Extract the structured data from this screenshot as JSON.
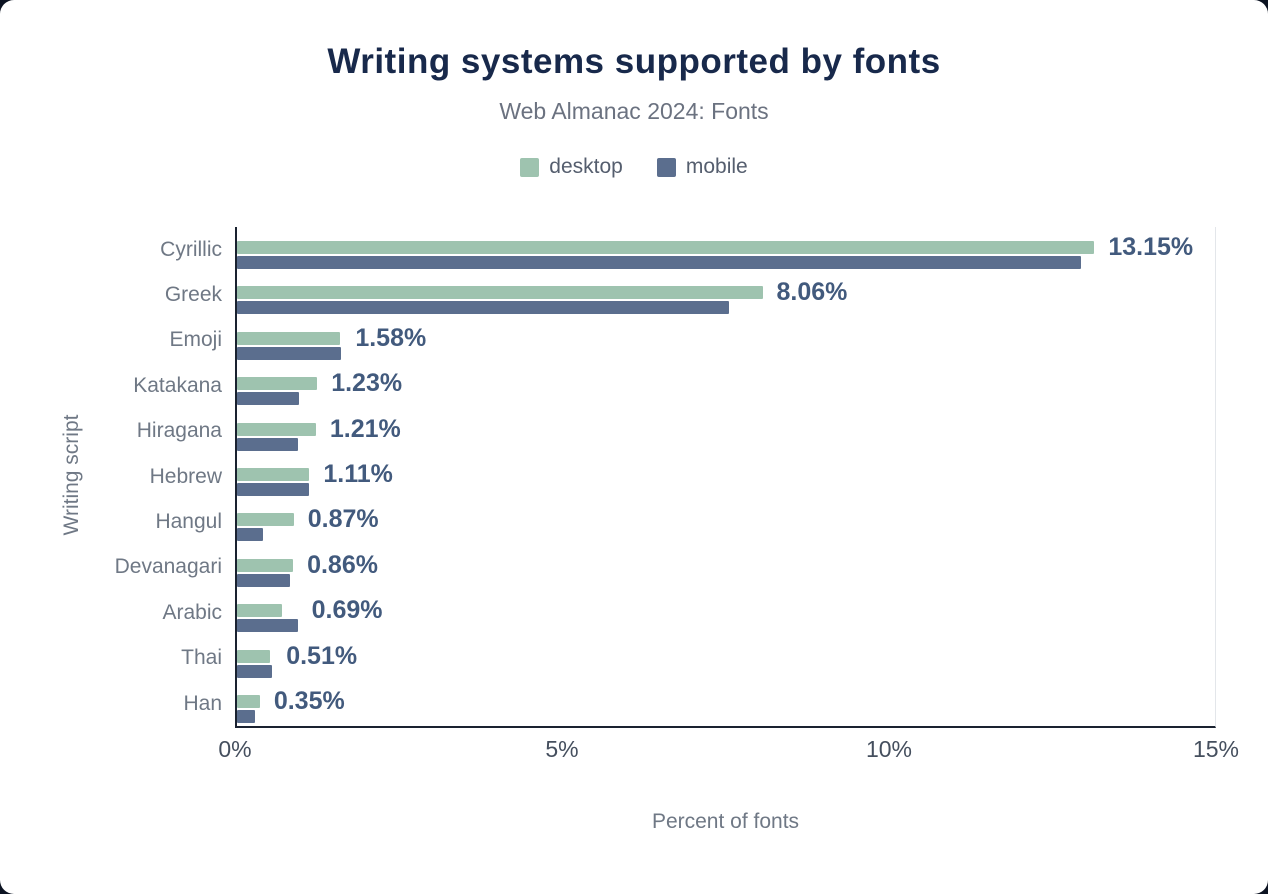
{
  "title": "Writing systems supported by fonts",
  "subtitle": "Web Almanac 2024: Fonts",
  "legend": [
    {
      "label": "desktop",
      "color": "#9ec3af"
    },
    {
      "label": "mobile",
      "color": "#5b6e8e"
    }
  ],
  "chart_data": {
    "type": "bar",
    "orientation": "horizontal",
    "title": "Writing systems supported by fonts",
    "subtitle": "Web Almanac 2024: Fonts",
    "xlabel": "Percent of fonts",
    "ylabel": "Writing script",
    "xlim": [
      0,
      15
    ],
    "grid": false,
    "legend_position": "top",
    "categories": [
      "Cyrillic",
      "Greek",
      "Emoji",
      "Katakana",
      "Hiragana",
      "Hebrew",
      "Hangul",
      "Devanagari",
      "Arabic",
      "Thai",
      "Han"
    ],
    "series": [
      {
        "name": "desktop",
        "color": "#9ec3af",
        "values": [
          13.15,
          8.06,
          1.58,
          1.23,
          1.21,
          1.11,
          0.87,
          0.86,
          0.69,
          0.51,
          0.35
        ]
      },
      {
        "name": "mobile",
        "color": "#5b6e8e",
        "values": [
          12.95,
          7.55,
          1.6,
          0.95,
          0.94,
          1.1,
          0.4,
          0.81,
          0.93,
          0.54,
          0.28
        ]
      }
    ],
    "value_labels": [
      "13.15%",
      "8.06%",
      "1.58%",
      "1.23%",
      "1.21%",
      "1.11%",
      "0.87%",
      "0.86%",
      "0.69%",
      "0.51%",
      "0.35%"
    ],
    "xticks": {
      "values": [
        0,
        5,
        10,
        15
      ],
      "labels": [
        "0%",
        "5%",
        "10%",
        "15%"
      ]
    }
  }
}
